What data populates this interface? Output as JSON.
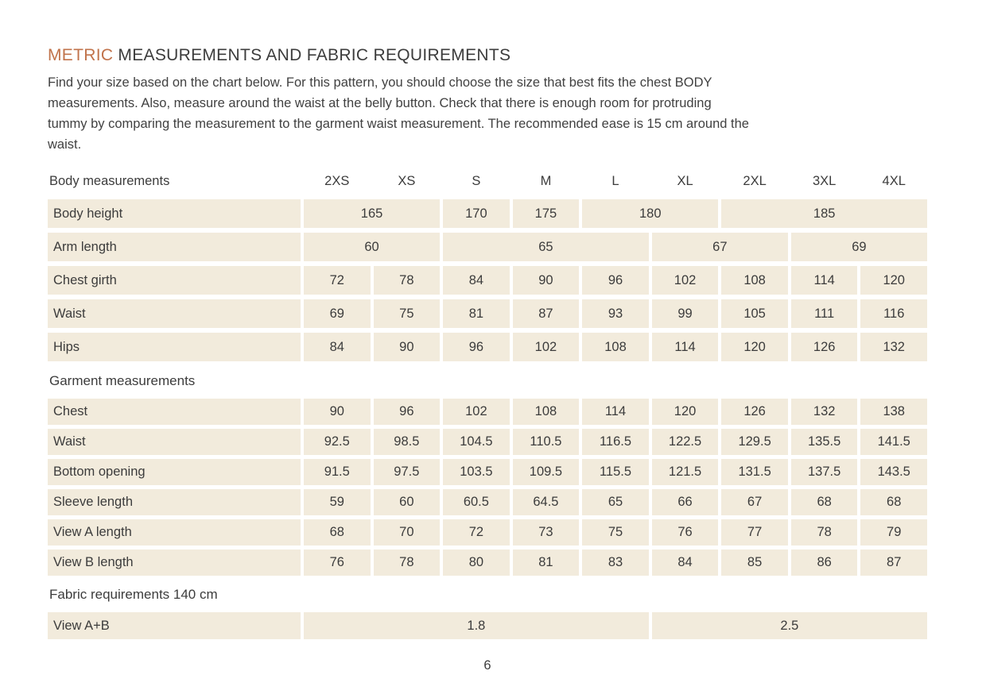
{
  "page": {
    "title_accent": "METRIC",
    "title_rest": " MEASUREMENTS AND FABRIC REQUIREMENTS",
    "intro_lines": [
      "Find your size based on the chart below. For this pattern, you should choose the size that best fits the chest BODY",
      "measurements. Also, measure around the waist at the belly button. Check that there is enough room for protruding",
      "tummy by comparing the measurement to the garment waist measurement. The recommended ease is 15 cm around the",
      "waist."
    ],
    "page_number": "6"
  },
  "colors": {
    "accent": "#c1734b",
    "cell_background": "#f2ebdc",
    "text": "#3c3c3c"
  },
  "table": {
    "header": {
      "label": "Body measurements",
      "sizes": [
        "2XS",
        "XS",
        "S",
        "M",
        "L",
        "XL",
        "2XL",
        "3XL",
        "4XL"
      ]
    },
    "sections": [
      {
        "name": "body-measurements",
        "title": "",
        "rows": [
          {
            "label": "Body height",
            "cells": [
              {
                "value": "165",
                "span": 2
              },
              {
                "value": "170",
                "span": 1
              },
              {
                "value": "175",
                "span": 1
              },
              {
                "value": "180",
                "span": 2
              },
              {
                "value": "185",
                "span": 3
              }
            ]
          },
          {
            "label": "Arm length",
            "cells": [
              {
                "value": "60",
                "span": 2
              },
              {
                "value": "65",
                "span": 3
              },
              {
                "value": "67",
                "span": 2
              },
              {
                "value": "69",
                "span": 2
              }
            ]
          },
          {
            "label": "Chest girth",
            "cells": [
              "72",
              "78",
              "84",
              "90",
              "96",
              "102",
              "108",
              "114",
              "120"
            ]
          },
          {
            "label": "Waist",
            "cells": [
              "69",
              "75",
              "81",
              "87",
              "93",
              "99",
              "105",
              "111",
              "116"
            ]
          },
          {
            "label": "Hips",
            "cells": [
              "84",
              "90",
              "96",
              "102",
              "108",
              "114",
              "120",
              "126",
              "132"
            ]
          }
        ]
      },
      {
        "name": "garment-measurements",
        "title": "Garment measurements",
        "rows": [
          {
            "label": "Chest",
            "cells": [
              "90",
              "96",
              "102",
              "108",
              "114",
              "120",
              "126",
              "132",
              "138"
            ]
          },
          {
            "label": "Waist",
            "cells": [
              "92.5",
              "98.5",
              "104.5",
              "110.5",
              "116.5",
              "122.5",
              "129.5",
              "135.5",
              "141.5"
            ]
          },
          {
            "label": "Bottom opening",
            "cells": [
              "91.5",
              "97.5",
              "103.5",
              "109.5",
              "115.5",
              "121.5",
              "131.5",
              "137.5",
              "143.5"
            ]
          },
          {
            "label": "Sleeve length",
            "cells": [
              "59",
              "60",
              "60.5",
              "64.5",
              "65",
              "66",
              "67",
              "68",
              "68"
            ]
          },
          {
            "label": "View A length",
            "cells": [
              "68",
              "70",
              "72",
              "73",
              "75",
              "76",
              "77",
              "78",
              "79"
            ]
          },
          {
            "label": "View B length",
            "cells": [
              "76",
              "78",
              "80",
              "81",
              "83",
              "84",
              "85",
              "86",
              "87"
            ]
          }
        ]
      },
      {
        "name": "fabric-requirements",
        "title": "Fabric requirements 140 cm",
        "rows": [
          {
            "label": "View A+B",
            "cells": [
              {
                "value": "1.8",
                "span": 5
              },
              {
                "value": "2.5",
                "span": 4
              }
            ]
          }
        ]
      }
    ]
  }
}
